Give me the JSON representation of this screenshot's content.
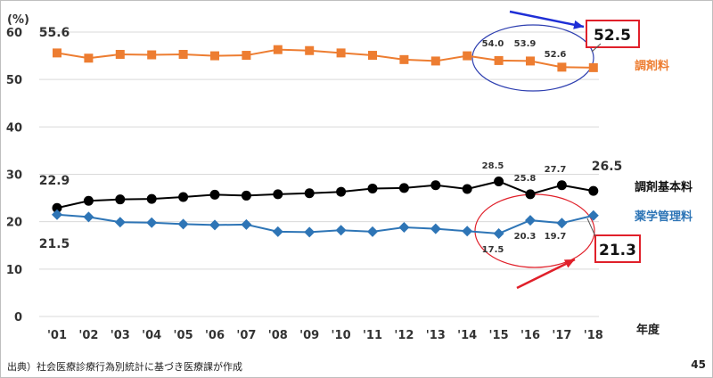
{
  "chart_data": {
    "type": "line",
    "yunit": "(%)",
    "categories": [
      "'01",
      "'02",
      "'03",
      "'04",
      "'05",
      "'06",
      "'07",
      "'08",
      "'09",
      "'10",
      "'11",
      "'12",
      "'13",
      "'14",
      "'15",
      "'16",
      "'17",
      "'18"
    ],
    "ylim": [
      0,
      60
    ],
    "yticks": [
      0,
      10,
      20,
      30,
      40,
      50,
      60
    ],
    "xlabel": "年度",
    "grid": true,
    "series": [
      {
        "name": "調剤料",
        "color": "#ED7D31",
        "marker": "square",
        "values": [
          55.6,
          54.5,
          55.3,
          55.2,
          55.3,
          55.0,
          55.1,
          56.3,
          56.1,
          55.6,
          55.1,
          54.2,
          53.9,
          55.0,
          54.0,
          53.9,
          52.6,
          52.5
        ],
        "labels": {
          "0": "55.6",
          "14": "54.0",
          "15": "53.9",
          "16": "52.6",
          "17": "52.5"
        }
      },
      {
        "name": "調剤基本料",
        "color": "#000000",
        "marker": "circle",
        "values": [
          22.9,
          24.4,
          24.7,
          24.8,
          25.2,
          25.7,
          25.5,
          25.8,
          26.0,
          26.3,
          27.0,
          27.1,
          27.7,
          26.9,
          28.5,
          25.8,
          27.7,
          26.5
        ],
        "labels": {
          "0": "22.9",
          "14": "28.5",
          "15": "25.8",
          "16": "27.7",
          "17": "26.5"
        }
      },
      {
        "name": "薬学管理料",
        "color": "#2E75B6",
        "marker": "diamond",
        "values": [
          21.5,
          21.0,
          19.9,
          19.8,
          19.5,
          19.3,
          19.4,
          17.9,
          17.8,
          18.2,
          17.9,
          18.8,
          18.5,
          18.0,
          17.5,
          20.3,
          19.7,
          21.3
        ],
        "labels": {
          "0": "21.5",
          "14": "17.5",
          "15": "20.3",
          "16": "19.7",
          "17": "21.3"
        }
      }
    ],
    "annotations": {
      "highlight_top": "52.5",
      "highlight_bottom": "21.3"
    }
  },
  "footer": {
    "source": "出典）社会医療診療行為別統計に基づき医療課が作成",
    "page": "45"
  }
}
